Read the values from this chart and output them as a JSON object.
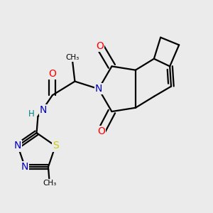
{
  "background_color": "#ebebeb",
  "line_color": "#000000",
  "lw": 1.6,
  "O_color": "#ff0000",
  "N_color": "#0000cc",
  "S_color": "#cccc00",
  "H_color": "#008080",
  "xlim": [
    0.02,
    0.82
  ],
  "ylim": [
    0.08,
    0.92
  ]
}
